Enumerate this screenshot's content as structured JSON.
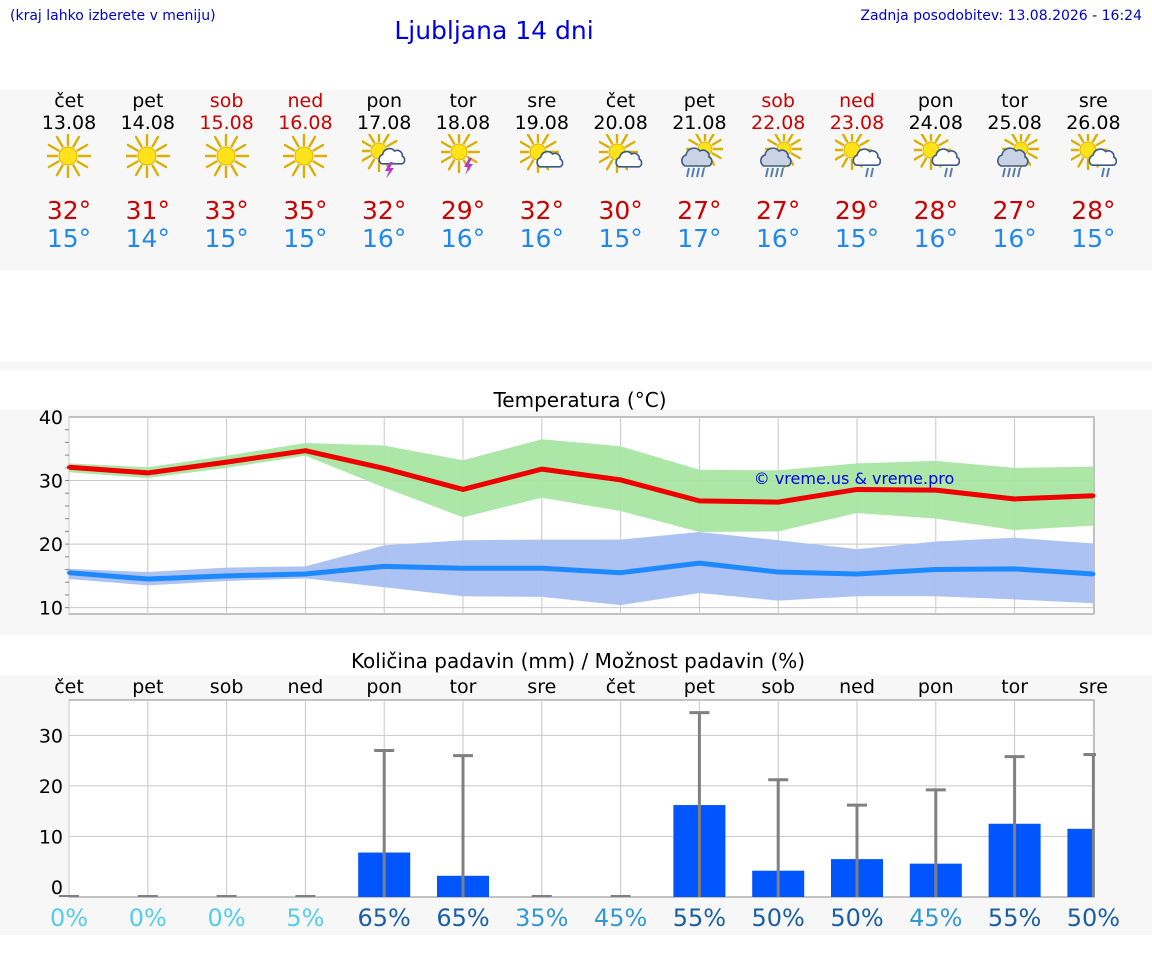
{
  "header": {
    "note": "(kraj lahko izberete v meniju)",
    "title": "Ljubljana 14 dni",
    "last_update": "Zadnja posodobitev: 13.08.2026 - 16:24"
  },
  "colors": {
    "weekend": "#cc0000",
    "weekday": "#000000",
    "tmax_text": "#cc0000",
    "tmin_text": "#2288ee",
    "max_line": "#ee0000",
    "max_band": "#a8e6a3",
    "min_line": "#1e88ff",
    "min_band": "#a7bff2",
    "precip_bar": "#0055ff",
    "error_bar": "#808080"
  },
  "days": [
    {
      "name": "čet",
      "date": "13.08",
      "weekend": false,
      "icon": "sunny-icon",
      "tmax": "32°",
      "tmin": "15°"
    },
    {
      "name": "pet",
      "date": "14.08",
      "weekend": false,
      "icon": "sunny-icon",
      "tmax": "31°",
      "tmin": "14°"
    },
    {
      "name": "sob",
      "date": "15.08",
      "weekend": true,
      "icon": "sunny-icon",
      "tmax": "33°",
      "tmin": "15°"
    },
    {
      "name": "ned",
      "date": "16.08",
      "weekend": true,
      "icon": "sunny-icon",
      "tmax": "35°",
      "tmin": "15°"
    },
    {
      "name": "pon",
      "date": "17.08",
      "weekend": false,
      "icon": "sun-cloud-thunder-icon",
      "tmax": "32°",
      "tmin": "16°"
    },
    {
      "name": "tor",
      "date": "18.08",
      "weekend": false,
      "icon": "sun-thunder-icon",
      "tmax": "29°",
      "tmin": "16°"
    },
    {
      "name": "sre",
      "date": "19.08",
      "weekend": false,
      "icon": "sun-small-cloud-icon",
      "tmax": "32°",
      "tmin": "16°"
    },
    {
      "name": "čet",
      "date": "20.08",
      "weekend": false,
      "icon": "sun-small-cloud-icon",
      "tmax": "30°",
      "tmin": "15°"
    },
    {
      "name": "pet",
      "date": "21.08",
      "weekend": false,
      "icon": "sun-cloud-rain-icon",
      "tmax": "27°",
      "tmin": "17°"
    },
    {
      "name": "sob",
      "date": "22.08",
      "weekend": true,
      "icon": "sun-cloud-rain-icon",
      "tmax": "27°",
      "tmin": "16°"
    },
    {
      "name": "ned",
      "date": "23.08",
      "weekend": true,
      "icon": "sun-cloud-light-rain-icon",
      "tmax": "29°",
      "tmin": "15°"
    },
    {
      "name": "pon",
      "date": "24.08",
      "weekend": false,
      "icon": "sun-cloud-light-rain-icon",
      "tmax": "28°",
      "tmin": "16°"
    },
    {
      "name": "tor",
      "date": "25.08",
      "weekend": false,
      "icon": "sun-cloud-rain-icon",
      "tmax": "27°",
      "tmin": "16°"
    },
    {
      "name": "sre",
      "date": "26.08",
      "weekend": false,
      "icon": "sun-cloud-light-rain-icon",
      "tmax": "28°",
      "tmin": "15°"
    }
  ],
  "chart_data": [
    {
      "type": "line",
      "title": "Temperatura (°C)",
      "watermark": "© vreme.us & vreme.pro",
      "ylim": [
        9,
        40
      ],
      "yticks": [
        10,
        20,
        30,
        40
      ],
      "grid": true,
      "series": [
        {
          "key": "max",
          "values": [
            32.1,
            31.2,
            32.9,
            34.7,
            31.9,
            28.6,
            31.8,
            30.1,
            26.8,
            26.6,
            28.6,
            28.5,
            27.1,
            27.6
          ],
          "band_low": [
            31.3,
            30.4,
            32.0,
            33.9,
            28.9,
            24.2,
            27.3,
            25.2,
            21.9,
            22.0,
            24.9,
            24.0,
            22.2,
            22.9
          ],
          "band_high": [
            32.7,
            32.1,
            33.9,
            35.9,
            35.5,
            33.2,
            36.5,
            35.4,
            31.7,
            31.6,
            32.7,
            33.1,
            32.0,
            32.2
          ]
        },
        {
          "key": "min",
          "values": [
            15.5,
            14.5,
            15.0,
            15.3,
            16.5,
            16.2,
            16.2,
            15.5,
            17.0,
            15.6,
            15.3,
            16.0,
            16.1,
            15.3
          ],
          "band_low": [
            14.5,
            13.5,
            14.2,
            14.6,
            13.2,
            11.8,
            11.7,
            10.4,
            12.3,
            11.1,
            11.8,
            11.8,
            11.3,
            10.7
          ],
          "band_high": [
            16.1,
            15.6,
            16.3,
            16.5,
            19.8,
            20.6,
            20.7,
            20.7,
            21.9,
            20.6,
            19.2,
            20.4,
            21.0,
            20.1
          ]
        }
      ]
    },
    {
      "type": "bar",
      "title": "Količina padavin (mm) / Možnost padavin (%)",
      "categories": [
        "čet",
        "pet",
        "sob",
        "ned",
        "pon",
        "tor",
        "sre",
        "čet",
        "pet",
        "sob",
        "ned",
        "pon",
        "tor",
        "sre"
      ],
      "ylim": [
        -2,
        37
      ],
      "yticks": [
        0,
        10,
        20,
        30
      ],
      "grid": true,
      "values": [
        0,
        0,
        0,
        0,
        6.8,
        2.2,
        0,
        0,
        16.2,
        3.2,
        5.5,
        4.6,
        12.5,
        11.5
      ],
      "error_high": [
        0,
        0,
        0,
        0,
        27,
        26,
        0,
        0,
        34.5,
        21.2,
        16.2,
        19.2,
        25.8,
        26.2
      ],
      "probabilities": [
        "0%",
        "0%",
        "0%",
        "5%",
        "65%",
        "65%",
        "35%",
        "45%",
        "55%",
        "50%",
        "50%",
        "45%",
        "55%",
        "50%"
      ],
      "probability_colors": [
        "#55ccee",
        "#55ccee",
        "#55ccee",
        "#55ccee",
        "#1a5fa6",
        "#1a5fa6",
        "#3399d6",
        "#3399d6",
        "#1a5fa6",
        "#1a5fa6",
        "#1a5fa6",
        "#3399d6",
        "#1a5fa6",
        "#1a5fa6"
      ]
    }
  ]
}
